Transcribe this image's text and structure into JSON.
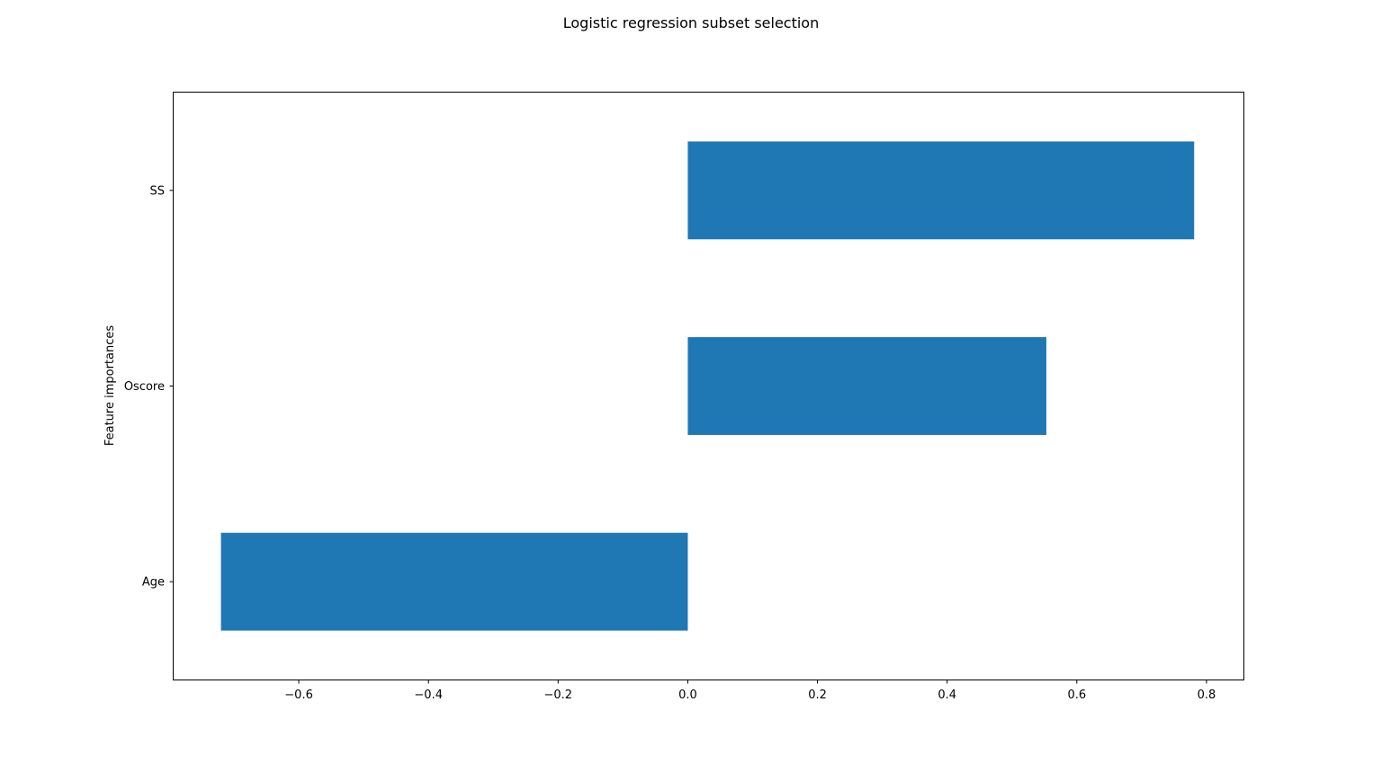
{
  "chart_data": {
    "type": "bar",
    "orientation": "horizontal",
    "title": "Logistic regression subset selection",
    "xlabel": "",
    "ylabel": "Feature importances",
    "categories": [
      "Age",
      "Oscore",
      "SS"
    ],
    "values": [
      -0.72,
      0.553,
      0.781
    ],
    "xlim": [
      -0.793,
      0.857
    ],
    "xticks": [
      -0.6,
      -0.4,
      -0.2,
      0.0,
      0.2,
      0.4,
      0.6,
      0.8
    ],
    "xtick_labels": [
      "−0.6",
      "−0.4",
      "−0.2",
      "0.0",
      "0.2",
      "0.4",
      "0.6",
      "0.8"
    ],
    "bar_color": "#1f77b4",
    "grid": false,
    "legend": false
  }
}
